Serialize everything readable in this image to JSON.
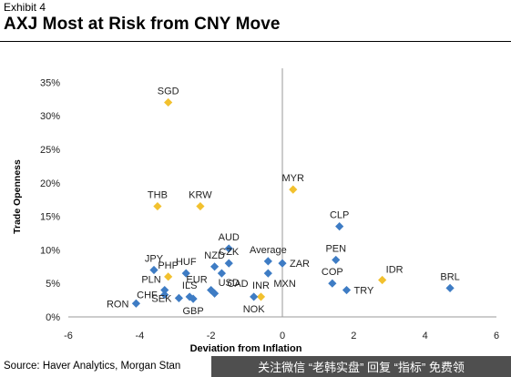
{
  "header": {
    "exhibit": "Exhibit 4",
    "title": "AXJ Most at Risk from CNY Move"
  },
  "source": "Source: Haver Analytics, Morgan Stan",
  "watermark": "关注微信 “老韩实盘” 回复 “指标” 免费领",
  "chart_data": {
    "type": "scatter",
    "title": "",
    "xlabel": "Deviation from Inflation",
    "ylabel": "Trade Openness",
    "xlim": [
      -6,
      6
    ],
    "ylim": [
      0,
      0.36
    ],
    "xticks": [
      -6,
      -4,
      -2,
      0,
      2,
      4,
      6
    ],
    "yticks": [
      0,
      0.05,
      0.1,
      0.15,
      0.2,
      0.25,
      0.3,
      0.35
    ],
    "ytick_labels": [
      "0%",
      "5%",
      "10%",
      "15%",
      "20%",
      "25%",
      "30%",
      "35%"
    ],
    "grid": false,
    "colors": {
      "highlight": "#F2C12E",
      "other": "#3E7CC4"
    },
    "points": [
      {
        "label": "SGD",
        "x": -3.2,
        "y": 0.32,
        "group": "highlight",
        "label_pos": "top"
      },
      {
        "label": "THB",
        "x": -3.5,
        "y": 0.165,
        "group": "highlight",
        "label_pos": "top"
      },
      {
        "label": "KRW",
        "x": -2.3,
        "y": 0.165,
        "group": "highlight",
        "label_pos": "top"
      },
      {
        "label": "MYR",
        "x": 0.3,
        "y": 0.19,
        "group": "highlight",
        "label_pos": "top"
      },
      {
        "label": "PHP",
        "x": -3.2,
        "y": 0.06,
        "group": "highlight",
        "label_pos": "top"
      },
      {
        "label": "IDR",
        "x": 2.8,
        "y": 0.055,
        "group": "highlight",
        "label_pos": "top-right"
      },
      {
        "label": "INR",
        "x": -0.6,
        "y": 0.03,
        "group": "highlight",
        "label_pos": "top"
      },
      {
        "label": "CLP",
        "x": 1.6,
        "y": 0.135,
        "group": "other",
        "label_pos": "top"
      },
      {
        "label": "PEN",
        "x": 1.5,
        "y": 0.085,
        "group": "other",
        "label_pos": "top"
      },
      {
        "label": "COP",
        "x": 1.4,
        "y": 0.05,
        "group": "other",
        "label_pos": "top"
      },
      {
        "label": "TRY",
        "x": 1.8,
        "y": 0.04,
        "group": "other",
        "label_pos": "right"
      },
      {
        "label": "BRL",
        "x": 4.7,
        "y": 0.043,
        "group": "other",
        "label_pos": "top"
      },
      {
        "label": "ZAR",
        "x": 0.0,
        "y": 0.08,
        "group": "other",
        "label_pos": "right"
      },
      {
        "label": "Average",
        "x": -0.4,
        "y": 0.083,
        "group": "other",
        "label_pos": "top"
      },
      {
        "label": "MXN",
        "x": -0.4,
        "y": 0.065,
        "group": "other",
        "label_pos": "bottom-right"
      },
      {
        "label": "AUD",
        "x": -1.5,
        "y": 0.102,
        "group": "other",
        "label_pos": "top"
      },
      {
        "label": "CZK",
        "x": -1.5,
        "y": 0.08,
        "group": "other",
        "label_pos": "top"
      },
      {
        "label": "NZD",
        "x": -1.9,
        "y": 0.075,
        "group": "other",
        "label_pos": "top"
      },
      {
        "label": "CAD",
        "x": -1.7,
        "y": 0.065,
        "group": "other",
        "label_pos": "bottom-right"
      },
      {
        "label": "HUF",
        "x": -2.7,
        "y": 0.065,
        "group": "other",
        "label_pos": "top"
      },
      {
        "label": "JPY",
        "x": -3.6,
        "y": 0.07,
        "group": "other",
        "label_pos": "top"
      },
      {
        "label": "PLN",
        "x": -3.3,
        "y": 0.04,
        "group": "other",
        "label_pos": "top-left"
      },
      {
        "label": "CHF",
        "x": -3.3,
        "y": 0.033,
        "group": "other",
        "label_pos": "left"
      },
      {
        "label": "RON",
        "x": -4.1,
        "y": 0.02,
        "group": "other",
        "label_pos": "left"
      },
      {
        "label": "SEK",
        "x": -2.9,
        "y": 0.028,
        "group": "other",
        "label_pos": "left"
      },
      {
        "label": "ILS",
        "x": -2.6,
        "y": 0.03,
        "group": "other",
        "label_pos": "top"
      },
      {
        "label": "EUR",
        "x": -2.0,
        "y": 0.04,
        "group": "other",
        "label_pos": "top-left"
      },
      {
        "label": "GBP",
        "x": -2.5,
        "y": 0.027,
        "group": "other",
        "label_pos": "bottom"
      },
      {
        "label": "USD",
        "x": -1.9,
        "y": 0.035,
        "group": "other",
        "label_pos": "top-right"
      },
      {
        "label": "NOK",
        "x": -0.8,
        "y": 0.03,
        "group": "other",
        "label_pos": "bottom"
      }
    ]
  }
}
